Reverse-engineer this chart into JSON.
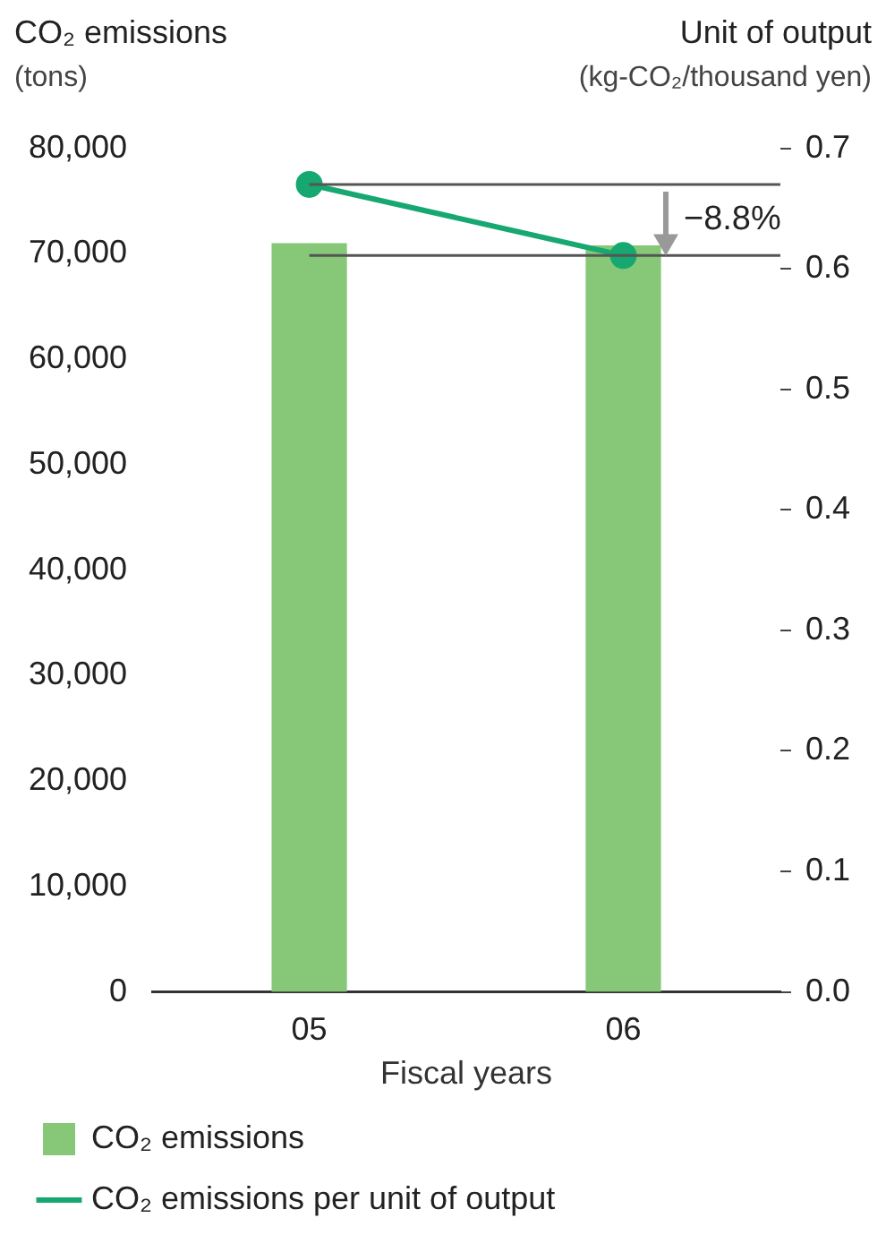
{
  "chart_data": {
    "type": "bar",
    "ylabel": "CO₂ emissions\n(tons)",
    "y2label": "Unit of output\n(kg-CO₂/thousand yen)",
    "xlabel": "Fiscal years",
    "categories": [
      "05",
      "06"
    ],
    "series": [
      {
        "name": "CO₂ emissions",
        "color": "#86c878",
        "values": [
          71000,
          70800
        ]
      },
      {
        "name": "CO₂ emissions per unit of output",
        "type": "line",
        "axis": "y2",
        "color": "#16a870",
        "values": [
          0.67,
          0.611
        ]
      }
    ],
    "ylim": [
      0,
      80000
    ],
    "yticks": [
      {
        "value": 0,
        "label": "0"
      },
      {
        "value": 10000,
        "label": "10,000"
      },
      {
        "value": 20000,
        "label": "20,000"
      },
      {
        "value": 30000,
        "label": "30,000"
      },
      {
        "value": 40000,
        "label": "40,000"
      },
      {
        "value": 50000,
        "label": "50,000"
      },
      {
        "value": 60000,
        "label": "60,000"
      },
      {
        "value": 70000,
        "label": "70,000"
      },
      {
        "value": 80000,
        "label": "80,000"
      }
    ],
    "y2lim": [
      0,
      0.7
    ],
    "y2ticks": [
      {
        "value": 0,
        "label": "0.0"
      },
      0.1,
      0.2,
      0.3,
      0.4,
      0.5,
      0.6,
      0.7
    ],
    "ref_lines": [
      {
        "axis": "y2",
        "value": 0.67,
        "color": "#555555"
      },
      {
        "axis": "y2",
        "value": 0.611,
        "color": "#555555"
      }
    ],
    "annotations": [
      "−8.8%"
    ],
    "marker": "circle",
    "legend": "bottom"
  }
}
